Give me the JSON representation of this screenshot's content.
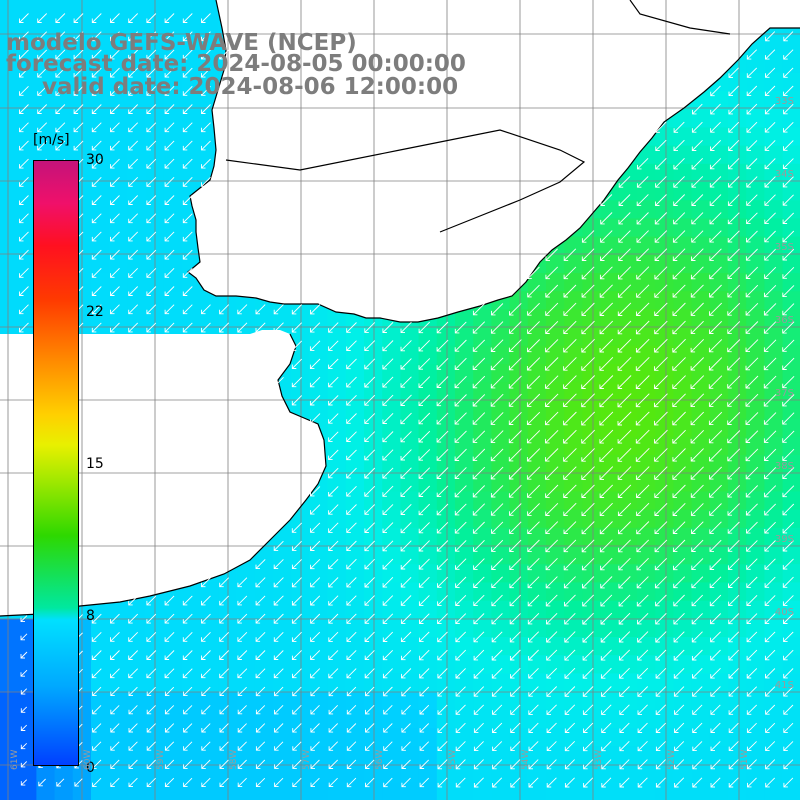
{
  "title": {
    "model": "modelo GEFS-WAVE (NCEP)",
    "forecast": "forecast date: 2024-08-05 00:00:00",
    "valid": "valid date: 2024-08-06 12:00:00"
  },
  "colorbar": {
    "unit": "[m/s]",
    "min": 0,
    "max": 30,
    "ticks": [
      "30",
      "22",
      "15",
      "8",
      "0"
    ],
    "colors": [
      "#0040ff",
      "#00a8ff",
      "#00e0ff",
      "#00e8a0",
      "#2ed800",
      "#a0e800",
      "#ffd000",
      "#ff8a00",
      "#ff1020",
      "#c4137a"
    ]
  },
  "map": {
    "land_color": "#ffffff",
    "coast_color": "#000000",
    "grid_color": "#808080",
    "vector_color": "#ffffff",
    "lat_labels": [
      "33S",
      "34S",
      "35S",
      "36S",
      "37S",
      "38S",
      "39S",
      "40S",
      "41S"
    ],
    "lon_labels": [
      "61W",
      "60W",
      "59W",
      "58W",
      "57W",
      "56W",
      "55W",
      "54W",
      "53W",
      "52W",
      "51W"
    ],
    "wind_direction": "from NE",
    "speed_range_ms": [
      6,
      14
    ]
  }
}
